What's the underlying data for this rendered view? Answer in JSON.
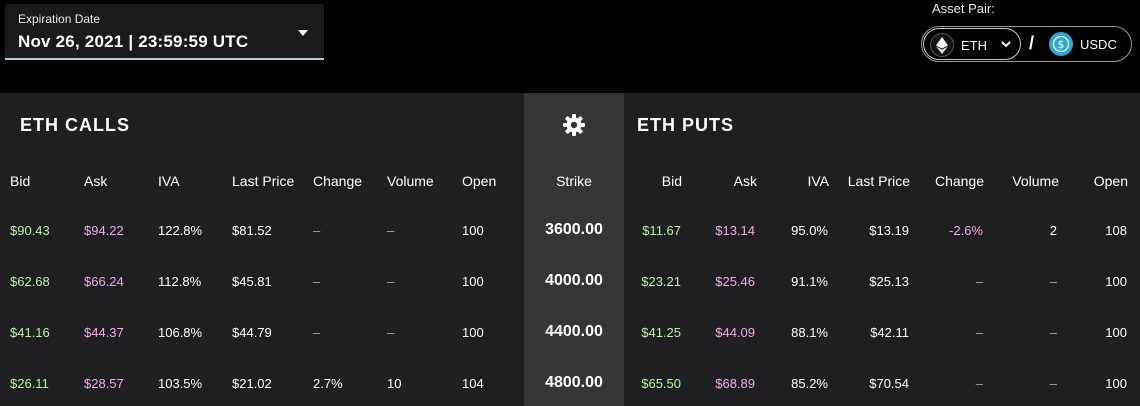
{
  "expiration": {
    "label": "Expiration Date",
    "value": "Nov 26, 2021 | 23:59:59 UTC"
  },
  "asset_pair": {
    "label": "Asset Pair:",
    "base": "ETH",
    "separator": "/",
    "quote": "USDC"
  },
  "calls": {
    "title": "ETH CALLS",
    "headers": [
      "Bid",
      "Ask",
      "IVA",
      "Last Price",
      "Change",
      "Volume",
      "Open"
    ],
    "rows": [
      {
        "bid": "$90.43",
        "ask": "$94.22",
        "iva": "122.8%",
        "last": "$81.52",
        "change": "–",
        "volume": "–",
        "open": "100"
      },
      {
        "bid": "$62.68",
        "ask": "$66.24",
        "iva": "112.8%",
        "last": "$45.81",
        "change": "–",
        "volume": "–",
        "open": "100"
      },
      {
        "bid": "$41.16",
        "ask": "$44.37",
        "iva": "106.8%",
        "last": "$44.79",
        "change": "–",
        "volume": "–",
        "open": "100"
      },
      {
        "bid": "$26.11",
        "ask": "$28.57",
        "iva": "103.5%",
        "last": "$21.02",
        "change": "2.7%",
        "volume": "10",
        "open": "104"
      }
    ]
  },
  "strike": {
    "header": "Strike",
    "values": [
      "3600.00",
      "4000.00",
      "4400.00",
      "4800.00"
    ]
  },
  "puts": {
    "title": "ETH PUTS",
    "headers": [
      "Bid",
      "Ask",
      "IVA",
      "Last Price",
      "Change",
      "Volume",
      "Open"
    ],
    "rows": [
      {
        "bid": "$11.67",
        "ask": "$13.14",
        "iva": "95.0%",
        "last": "$13.19",
        "change": "-2.6%",
        "volume": "2",
        "open": "108"
      },
      {
        "bid": "$23.21",
        "ask": "$25.46",
        "iva": "91.1%",
        "last": "$25.13",
        "change": "–",
        "volume": "–",
        "open": "100"
      },
      {
        "bid": "$41.25",
        "ask": "$44.09",
        "iva": "88.1%",
        "last": "$42.11",
        "change": "–",
        "volume": "–",
        "open": "100"
      },
      {
        "bid": "$65.50",
        "ask": "$68.89",
        "iva": "85.2%",
        "last": "$70.54",
        "change": "–",
        "volume": "–",
        "open": "100"
      }
    ]
  },
  "icons": {
    "dropdown": "caret-down-icon",
    "eth": "ethereum-logo-icon",
    "usdc": "usdc-logo-icon",
    "chevron": "chevron-down-icon",
    "settings": "gear-icon"
  },
  "colors": {
    "bid": "#b8f2a5",
    "ask": "#f1a8ea",
    "panel": "#1f1f21",
    "strike_panel": "#353537",
    "accent_line": "#a9d3dc",
    "usdc": "#2ea8d6"
  }
}
